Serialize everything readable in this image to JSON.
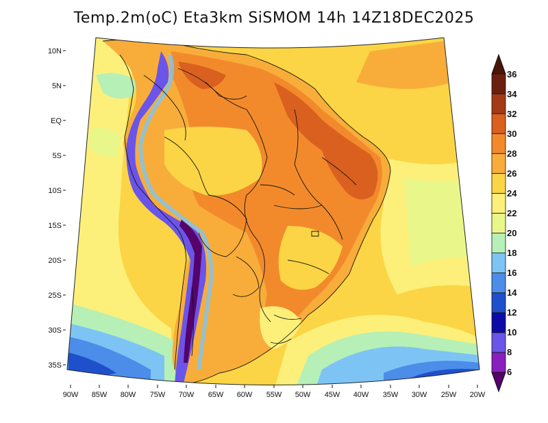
{
  "title": "Temp.2m(oC) Eta3km SiSMOM 14h 14Z18DEC2025",
  "map": {
    "lat_labels": [
      "10N",
      "5N",
      "EQ",
      "5S",
      "10S",
      "15S",
      "20S",
      "25S",
      "30S",
      "35S"
    ],
    "lon_labels": [
      "90W",
      "85W",
      "80W",
      "75W",
      "70W",
      "65W",
      "60W",
      "55W",
      "50W",
      "45W",
      "40W",
      "35W",
      "30W",
      "25W",
      "20W"
    ],
    "region": "South America / Brazil",
    "variable": "2 m air temperature",
    "units": "oC"
  },
  "colorbar": {
    "levels": [
      "6",
      "8",
      "10",
      "12",
      "14",
      "16",
      "18",
      "20",
      "22",
      "24",
      "26",
      "28",
      "30",
      "32",
      "34",
      "36"
    ],
    "colors": [
      "#55036b",
      "#8a1fbf",
      "#6a55e8",
      "#0d0aa8",
      "#1f50cc",
      "#4b8de8",
      "#7dc4f4",
      "#b6f0b6",
      "#e9f78a",
      "#fcf07a",
      "#fbd545",
      "#f8ad3a",
      "#f28a2c",
      "#d9601f",
      "#a33a17",
      "#6b200f",
      "#4a1508"
    ]
  },
  "colors": {
    "ocean_warm": "#fbd545",
    "ocean_cool": "#fcf07a",
    "land_hot": "#f28a2c",
    "andes": "#6a55e8",
    "southern_ocean": "#4b8de8"
  }
}
